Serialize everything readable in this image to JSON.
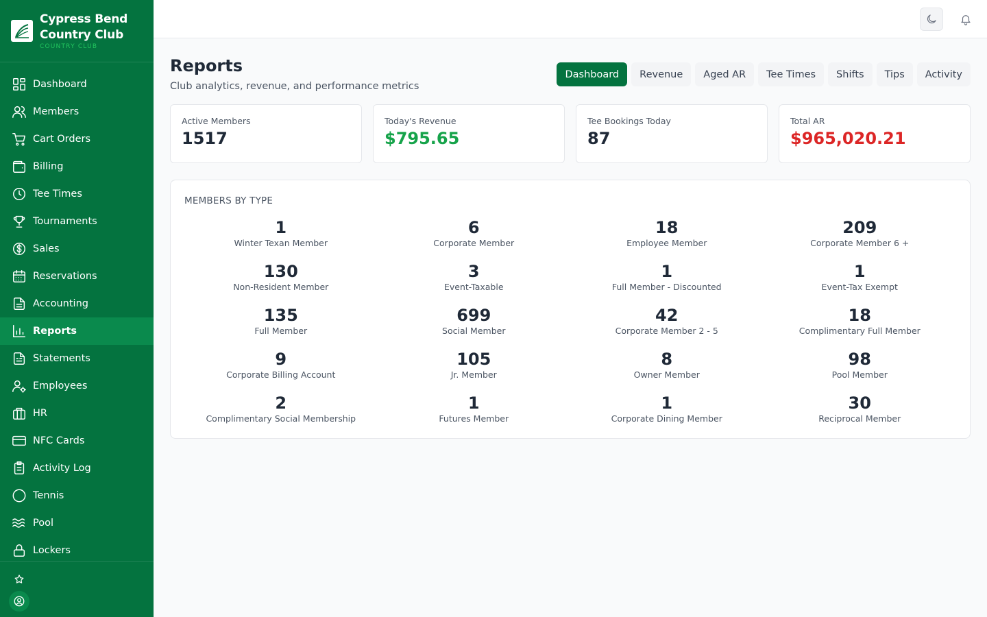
{
  "brand": {
    "name": "Cypress Bend Country Club",
    "subtitle": "COUNTRY CLUB"
  },
  "sidebar": {
    "items": [
      {
        "label": "Dashboard",
        "icon": "dashboard-icon"
      },
      {
        "label": "Members",
        "icon": "members-icon"
      },
      {
        "label": "Cart Orders",
        "icon": "cart-icon"
      },
      {
        "label": "Billing",
        "icon": "wallet-icon"
      },
      {
        "label": "Tee Times",
        "icon": "clock-icon"
      },
      {
        "label": "Tournaments",
        "icon": "trophy-icon"
      },
      {
        "label": "Sales",
        "icon": "dollar-icon"
      },
      {
        "label": "Reservations",
        "icon": "calendar-icon"
      },
      {
        "label": "Accounting",
        "icon": "document-icon"
      },
      {
        "label": "Reports",
        "icon": "bar-chart-icon",
        "active": true
      },
      {
        "label": "Statements",
        "icon": "statement-icon"
      },
      {
        "label": "Employees",
        "icon": "user-gear-icon"
      },
      {
        "label": "HR",
        "icon": "briefcase-icon"
      },
      {
        "label": "NFC Cards",
        "icon": "credit-card-icon"
      },
      {
        "label": "Activity Log",
        "icon": "clipboard-icon"
      },
      {
        "label": "Tennis",
        "icon": "circle-icon"
      },
      {
        "label": "Pool",
        "icon": "waves-icon"
      },
      {
        "label": "Lockers",
        "icon": "lock-icon"
      }
    ]
  },
  "header": {
    "theme_icon": "moon-icon",
    "notification_icon": "bell-icon"
  },
  "page": {
    "title": "Reports",
    "subtitle": "Club analytics, revenue, and performance metrics"
  },
  "tabs": [
    {
      "label": "Dashboard",
      "active": true
    },
    {
      "label": "Revenue"
    },
    {
      "label": "Aged AR"
    },
    {
      "label": "Tee Times"
    },
    {
      "label": "Shifts"
    },
    {
      "label": "Tips"
    },
    {
      "label": "Activity"
    }
  ],
  "stats": [
    {
      "label": "Active Members",
      "value": "1517",
      "color": "#1f2937"
    },
    {
      "label": "Today's Revenue",
      "value": "$795.65",
      "color": "#16a34a"
    },
    {
      "label": "Tee Bookings Today",
      "value": "87",
      "color": "#1f2937"
    },
    {
      "label": "Total AR",
      "value": "$965,020.21",
      "color": "#dc2626"
    }
  ],
  "members_by_type": {
    "title": "MEMBERS BY TYPE",
    "items": [
      {
        "count": "1",
        "name": "Winter Texan Member"
      },
      {
        "count": "6",
        "name": "Corporate Member"
      },
      {
        "count": "18",
        "name": "Employee Member"
      },
      {
        "count": "209",
        "name": "Corporate Member 6 +"
      },
      {
        "count": "130",
        "name": "Non-Resident Member"
      },
      {
        "count": "3",
        "name": "Event-Taxable"
      },
      {
        "count": "1",
        "name": "Full Member - Discounted"
      },
      {
        "count": "1",
        "name": "Event-Tax Exempt"
      },
      {
        "count": "135",
        "name": "Full Member"
      },
      {
        "count": "699",
        "name": "Social Member"
      },
      {
        "count": "42",
        "name": "Corporate Member 2 - 5"
      },
      {
        "count": "18",
        "name": "Complimentary Full Member"
      },
      {
        "count": "9",
        "name": "Corporate Billing Account"
      },
      {
        "count": "105",
        "name": "Jr. Member"
      },
      {
        "count": "8",
        "name": "Owner Member"
      },
      {
        "count": "98",
        "name": "Pool Member"
      },
      {
        "count": "2",
        "name": "Complimentary Social Membership"
      },
      {
        "count": "1",
        "name": "Futures Member"
      },
      {
        "count": "1",
        "name": "Corporate Dining Member"
      },
      {
        "count": "30",
        "name": "Reciprocal Member"
      }
    ]
  },
  "colors": {
    "sidebar": "#04733f",
    "sidebar_active": "#0a8a4d",
    "accent": "#04733f",
    "positive": "#16a34a",
    "negative": "#dc2626"
  }
}
